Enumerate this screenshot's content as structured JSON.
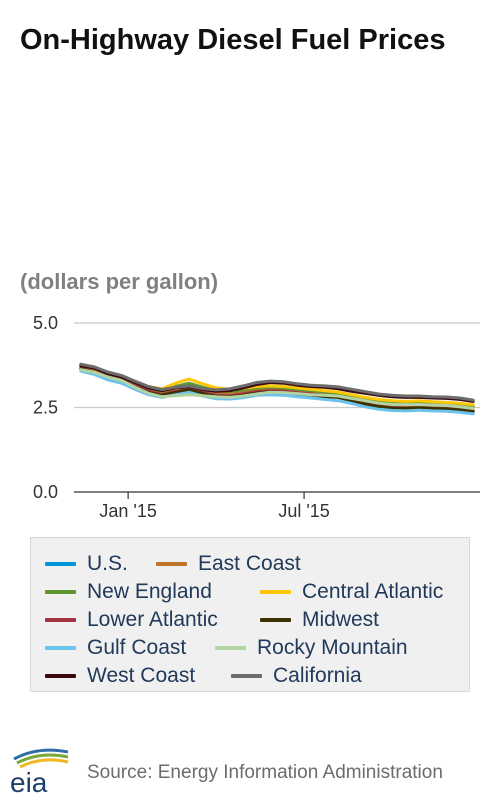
{
  "title": "On-Highway Diesel Fuel Prices",
  "units": "(dollars per gallon)",
  "source": "Source: Energy Information Administration",
  "logo_text": "eia",
  "chart_data": {
    "type": "line",
    "title": "On-Highway Diesel Fuel Prices",
    "ylabel": "(dollars per gallon)",
    "xlabel": "",
    "ylim": [
      0,
      5
    ],
    "y_ticks": [
      {
        "value": 0,
        "label": "0.0"
      },
      {
        "value": 2.5,
        "label": "2.5"
      },
      {
        "value": 5,
        "label": "5.0"
      }
    ],
    "x_ticks": [
      {
        "date": "2015-01-05",
        "label": "Jan '15"
      },
      {
        "date": "2015-07-06",
        "label": "Jul '15"
      }
    ],
    "grid": true,
    "legend_position": "bottom",
    "x": [
      "2014-11-17",
      "2014-12-01",
      "2014-12-15",
      "2014-12-29",
      "2015-01-12",
      "2015-01-26",
      "2015-02-09",
      "2015-02-23",
      "2015-03-09",
      "2015-03-23",
      "2015-04-06",
      "2015-04-20",
      "2015-05-04",
      "2015-05-18",
      "2015-06-01",
      "2015-06-15",
      "2015-06-29",
      "2015-07-13",
      "2015-07-27",
      "2015-08-10",
      "2015-08-24",
      "2015-09-07",
      "2015-09-21",
      "2015-10-05",
      "2015-10-19",
      "2015-11-02",
      "2015-11-16",
      "2015-11-30",
      "2015-12-14",
      "2015-12-28"
    ],
    "series": [
      {
        "name": "U.S.",
        "color": "#0096d7",
        "values": [
          3.66,
          3.56,
          3.4,
          3.3,
          3.12,
          2.96,
          2.87,
          2.96,
          3.04,
          2.93,
          2.85,
          2.84,
          2.88,
          2.95,
          2.98,
          2.96,
          2.91,
          2.87,
          2.84,
          2.82,
          2.72,
          2.63,
          2.55,
          2.5,
          2.49,
          2.51,
          2.49,
          2.48,
          2.45,
          2.4
        ]
      },
      {
        "name": "East Coast",
        "color": "#bd732a",
        "values": [
          3.7,
          3.6,
          3.45,
          3.35,
          3.2,
          3.05,
          2.95,
          3.08,
          3.16,
          3.02,
          2.95,
          2.94,
          2.98,
          3.05,
          3.08,
          3.06,
          3.02,
          2.98,
          2.94,
          2.9,
          2.82,
          2.74,
          2.66,
          2.62,
          2.6,
          2.62,
          2.6,
          2.58,
          2.55,
          2.5
        ]
      },
      {
        "name": "New England",
        "color": "#5d9732",
        "values": [
          3.72,
          3.62,
          3.48,
          3.38,
          3.22,
          3.08,
          2.98,
          3.12,
          3.22,
          3.1,
          3.0,
          2.98,
          3.02,
          3.08,
          3.1,
          3.08,
          3.04,
          3.0,
          2.96,
          2.92,
          2.84,
          2.76,
          2.7,
          2.66,
          2.64,
          2.65,
          2.63,
          2.61,
          2.58,
          2.54
        ]
      },
      {
        "name": "Central Atlantic",
        "color": "#ffc702",
        "values": [
          3.74,
          3.64,
          3.5,
          3.4,
          3.25,
          3.12,
          3.05,
          3.22,
          3.34,
          3.2,
          3.08,
          3.04,
          3.07,
          3.12,
          3.14,
          3.12,
          3.08,
          3.04,
          3.0,
          2.96,
          2.88,
          2.8,
          2.74,
          2.7,
          2.68,
          2.7,
          2.67,
          2.65,
          2.62,
          2.58
        ]
      },
      {
        "name": "Lower Atlantic",
        "color": "#a33340",
        "values": [
          3.66,
          3.55,
          3.4,
          3.3,
          3.14,
          2.98,
          2.88,
          2.98,
          3.06,
          2.94,
          2.86,
          2.85,
          2.9,
          2.97,
          3.0,
          2.98,
          2.94,
          2.9,
          2.86,
          2.83,
          2.74,
          2.66,
          2.58,
          2.54,
          2.52,
          2.54,
          2.52,
          2.5,
          2.47,
          2.42
        ]
      },
      {
        "name": "Midwest",
        "color": "#3b3200",
        "values": [
          3.64,
          3.54,
          3.38,
          3.28,
          3.1,
          2.94,
          2.86,
          2.95,
          3.02,
          2.91,
          2.83,
          2.82,
          2.86,
          2.93,
          2.96,
          2.94,
          2.89,
          2.85,
          2.82,
          2.8,
          2.7,
          2.6,
          2.53,
          2.48,
          2.47,
          2.49,
          2.47,
          2.46,
          2.43,
          2.38
        ]
      },
      {
        "name": "Gulf Coast",
        "color": "#6bc2ed",
        "values": [
          3.58,
          3.48,
          3.32,
          3.22,
          3.04,
          2.88,
          2.8,
          2.88,
          2.95,
          2.84,
          2.76,
          2.75,
          2.79,
          2.86,
          2.88,
          2.86,
          2.82,
          2.78,
          2.74,
          2.7,
          2.62,
          2.52,
          2.45,
          2.41,
          2.4,
          2.42,
          2.4,
          2.39,
          2.36,
          2.31
        ]
      },
      {
        "name": "Rocky Mountain",
        "color": "#b3d3a3",
        "values": [
          3.62,
          3.54,
          3.4,
          3.3,
          3.1,
          2.92,
          2.82,
          2.85,
          2.88,
          2.85,
          2.82,
          2.8,
          2.84,
          2.9,
          2.95,
          2.94,
          2.91,
          2.88,
          2.86,
          2.84,
          2.77,
          2.7,
          2.63,
          2.59,
          2.58,
          2.59,
          2.57,
          2.56,
          2.52,
          2.47
        ]
      },
      {
        "name": "West Coast",
        "color": "#3a0a10",
        "values": [
          3.74,
          3.66,
          3.5,
          3.4,
          3.24,
          3.08,
          3.0,
          3.08,
          3.12,
          3.03,
          2.98,
          3.0,
          3.08,
          3.18,
          3.24,
          3.22,
          3.16,
          3.12,
          3.1,
          3.06,
          2.98,
          2.92,
          2.86,
          2.82,
          2.8,
          2.8,
          2.78,
          2.77,
          2.74,
          2.68
        ]
      },
      {
        "name": "California",
        "color": "#6d6d6d",
        "values": [
          3.78,
          3.7,
          3.55,
          3.45,
          3.28,
          3.12,
          3.03,
          3.1,
          3.14,
          3.06,
          3.02,
          3.05,
          3.14,
          3.24,
          3.28,
          3.26,
          3.2,
          3.16,
          3.14,
          3.11,
          3.04,
          2.97,
          2.9,
          2.86,
          2.84,
          2.84,
          2.82,
          2.81,
          2.78,
          2.72
        ]
      }
    ]
  }
}
